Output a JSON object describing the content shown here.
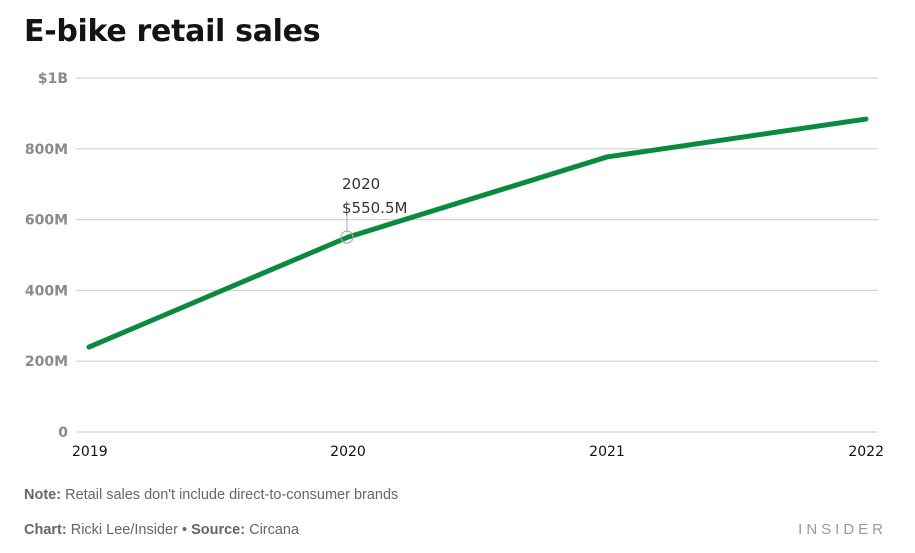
{
  "header": {
    "title": "E-bike retail sales"
  },
  "chart_data": {
    "type": "line",
    "title": "E-bike retail sales",
    "xlabel": "",
    "ylabel": "",
    "x": [
      "2019",
      "2020",
      "2021",
      "2022"
    ],
    "series": [
      {
        "name": "E-bike retail sales",
        "color": "#0a8a3e",
        "values": [
          240,
          550.5,
          777,
          884
        ]
      }
    ],
    "units": "millions USD",
    "ylim": [
      0,
      1000
    ],
    "yticks": [
      0,
      200,
      400,
      600,
      800,
      1000
    ],
    "ytick_labels": [
      "0",
      "200M",
      "400M",
      "600M",
      "800M",
      "$1B"
    ],
    "grid": true,
    "legend": "none",
    "annotations": [
      {
        "x": "2020",
        "value": 550.5,
        "label_line1": "2020",
        "label_line2": "$550.5M"
      }
    ]
  },
  "footer": {
    "note_label": "Note:",
    "note_text": " Retail sales don't include direct-to-consumer brands",
    "chart_label": "Chart:",
    "chart_text": " Ricki Lee/Insider",
    "separator": " • ",
    "source_label": "Source:",
    "source_text": " Circana",
    "logo": "INSIDER"
  }
}
